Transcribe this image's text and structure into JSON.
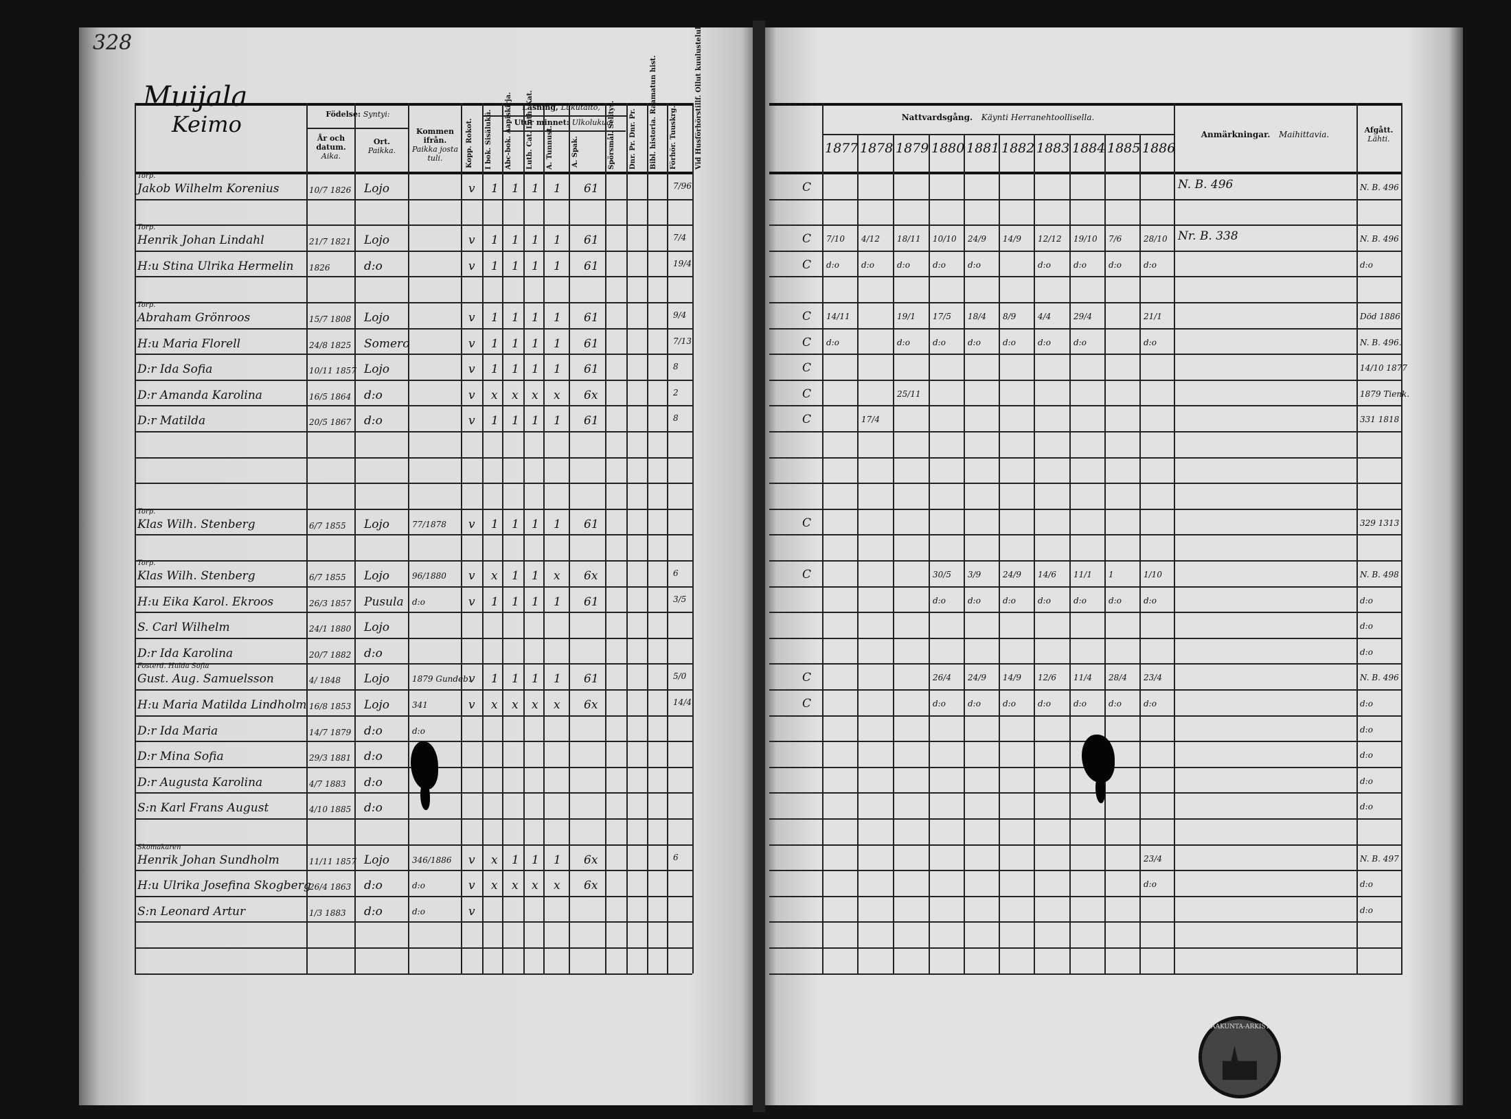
{
  "page_number": "328",
  "village": "Muijala",
  "left_header": {
    "name": "Keimo",
    "birth": "Födelse:",
    "birth_fi": "Syntyi:",
    "year_date": "År och datum.",
    "year_date_fi": "Aika.",
    "place": "Ort.",
    "place_fi": "Paikka.",
    "came_from": "Kommen ifrån.",
    "came_from_fi": "Paikka josta tuli.",
    "vaccinated": "Kopp. Rokot.",
    "reading": "Läsning,",
    "reading_fi": "Lukutaito,",
    "by_heart": "Utur minnet:",
    "by_heart_fi": "Ulkolukua:",
    "vertical": [
      "I bok. Sisälukü.",
      "Abc-bok. Aapiskirja.",
      "Luth. Cat. Luth. Kat.",
      "A. Tunnust.",
      "A. Spak.",
      "Spörsmål. Selitys.",
      "Dnr. Pr. Dnr. Pr.",
      "Bibl. historia. Raamatun hist.",
      "Förhör. Tuuskrg.",
      "Vid Husförhörstillf. Ollut kuulustelulla."
    ]
  },
  "right_header": {
    "communion": "Nattvardsgång.",
    "communion_fi": "Käynti Herranehtoollisella.",
    "years": [
      "1877",
      "1878",
      "1879",
      "1880",
      "1881",
      "1882",
      "1883",
      "1884",
      "1885",
      "1886"
    ],
    "remarks": "Anmärkningar.",
    "remarks_fi": "Maihittavia.",
    "departed": "Afgått.",
    "departed_fi": "Lähti."
  },
  "rows": [
    {
      "row": 0,
      "prefix": "Torp.",
      "name": "Jakob Wilhelm Korenius",
      "date": "10/7 1826",
      "place": "Lojo",
      "from": "",
      "marks": [
        "v",
        "1",
        "1",
        "1",
        "1"
      ],
      "score": "61",
      "hf": "7/96",
      "c": "C",
      "dates": [
        "",
        "",
        "",
        "",
        "",
        "",
        "",
        "",
        "",
        ""
      ],
      "remark": "N. B. 496",
      "departed": "N. B. 496"
    },
    {
      "row": 2,
      "prefix": "Torp.",
      "name": "Henrik Johan Lindahl",
      "date": "21/7 1821",
      "place": "Lojo",
      "from": "",
      "marks": [
        "v",
        "1",
        "1",
        "1",
        "1"
      ],
      "score": "61",
      "hf": "7/4",
      "c": "C",
      "dates": [
        "7/10",
        "4/12",
        "18/11",
        "10/10",
        "24/9",
        "14/9",
        "12/12",
        "19/10",
        "7/6",
        "28/10"
      ],
      "remark": "Nr. B. 338",
      "departed": "N. B. 496"
    },
    {
      "row": 3,
      "prefix": "",
      "name": "H:u Stina Ulrika Hermelin",
      "date": "1826",
      "place": "d:o",
      "from": "",
      "marks": [
        "v",
        "1",
        "1",
        "1",
        "1"
      ],
      "score": "61",
      "hf": "19/4",
      "c": "C",
      "dates": [
        "d:o",
        "d:o",
        "d:o",
        "d:o",
        "d:o",
        "",
        "d:o",
        "d:o",
        "d:o",
        "d:o"
      ],
      "remark": "",
      "departed": "d:o"
    },
    {
      "row": 5,
      "prefix": "Torp.",
      "name": "Abraham Grönroos",
      "date": "15/7 1808",
      "place": "Lojo",
      "from": "",
      "marks": [
        "v",
        "1",
        "1",
        "1",
        "1"
      ],
      "score": "61",
      "hf": "9/4",
      "c": "C",
      "dates": [
        "14/11",
        "",
        "19/1",
        "17/5",
        "18/4",
        "8/9",
        "4/4",
        "29/4",
        "",
        "21/1"
      ],
      "remark": "",
      "departed": "Död 1886"
    },
    {
      "row": 6,
      "prefix": "",
      "name": "H:u Maria Florell",
      "date": "24/8 1825",
      "place": "Somero",
      "from": "",
      "marks": [
        "v",
        "1",
        "1",
        "1",
        "1"
      ],
      "score": "61",
      "hf": "7/13",
      "c": "C",
      "dates": [
        "d:o",
        "",
        "d:o",
        "d:o",
        "d:o",
        "d:o",
        "d:o",
        "d:o",
        "",
        "d:o"
      ],
      "remark": "",
      "departed": "N. B. 496."
    },
    {
      "row": 7,
      "prefix": "",
      "name": "D:r Ida Sofia",
      "date": "10/11 1857",
      "place": "Lojo",
      "from": "",
      "marks": [
        "v",
        "1",
        "1",
        "1",
        "1"
      ],
      "score": "61",
      "hf": "8",
      "c": "C",
      "dates": [
        "",
        "",
        "",
        "",
        "",
        "",
        "",
        "",
        "",
        ""
      ],
      "remark": "",
      "departed": "14/10 1877"
    },
    {
      "row": 8,
      "prefix": "",
      "name": "D:r Amanda Karolina",
      "date": "16/5 1864",
      "place": "d:o",
      "from": "",
      "marks": [
        "v",
        "x",
        "x",
        "x",
        "x"
      ],
      "score": "6x",
      "hf": "2",
      "c": "C",
      "dates": [
        "",
        "",
        "25/11",
        "",
        "",
        "",
        "",
        "",
        "",
        ""
      ],
      "remark": "",
      "departed": "1879 Tienk."
    },
    {
      "row": 9,
      "prefix": "",
      "name": "D:r Matilda",
      "date": "20/5 1867",
      "place": "d:o",
      "from": "",
      "marks": [
        "v",
        "1",
        "1",
        "1",
        "1"
      ],
      "score": "61",
      "hf": "8",
      "c": "C",
      "dates": [
        "",
        "17/4",
        "",
        "",
        "",
        "",
        "",
        "",
        "",
        ""
      ],
      "remark": "",
      "departed": "331 1818"
    },
    {
      "row": 13,
      "prefix": "Torp.",
      "name": "Klas Wilh. Stenberg",
      "date": "6/7 1855",
      "place": "Lojo",
      "from": "77/1878",
      "marks": [
        "v",
        "1",
        "1",
        "1",
        "1"
      ],
      "score": "61",
      "hf": "",
      "c": "C",
      "dates": [
        "",
        "",
        "",
        "",
        "",
        "",
        "",
        "",
        "",
        ""
      ],
      "remark": "",
      "departed": "329 1313"
    },
    {
      "row": 15,
      "prefix": "Torp.",
      "name": "Klas Wilh. Stenberg",
      "date": "6/7 1855",
      "place": "Lojo",
      "from": "96/1880",
      "marks": [
        "v",
        "x",
        "1",
        "1",
        "x"
      ],
      "score": "6x",
      "hf": "6",
      "c": "C",
      "dates": [
        "",
        "",
        "",
        "30/5",
        "3/9",
        "24/9",
        "14/6",
        "11/1",
        "1",
        "1/10"
      ],
      "remark": "",
      "departed": "N. B. 498"
    },
    {
      "row": 16,
      "prefix": "",
      "name": "H:u Eika Karol. Ekroos",
      "date": "26/3 1857",
      "place": "Pusula",
      "from": "d:o",
      "marks": [
        "v",
        "1",
        "1",
        "1",
        "1"
      ],
      "score": "61",
      "hf": "3/5",
      "c": "",
      "dates": [
        "",
        "",
        "",
        "d:o",
        "d:o",
        "d:o",
        "d:o",
        "d:o",
        "d:o",
        "d:o"
      ],
      "remark": "",
      "departed": "d:o"
    },
    {
      "row": 17,
      "prefix": "",
      "name": "S. Carl Wilhelm",
      "date": "24/1 1880",
      "place": "Lojo",
      "from": "",
      "marks": [
        "",
        "",
        "",
        "",
        ""
      ],
      "score": "",
      "hf": "",
      "c": "",
      "dates": [
        "",
        "",
        "",
        "",
        "",
        "",
        "",
        "",
        "",
        ""
      ],
      "remark": "",
      "departed": "d:o"
    },
    {
      "row": 18,
      "prefix": "",
      "name": "D:r Ida Karolina",
      "date": "20/7 1882",
      "place": "d:o",
      "from": "",
      "marks": [
        "",
        "",
        "",
        "",
        ""
      ],
      "score": "",
      "hf": "",
      "c": "",
      "dates": [
        "",
        "",
        "",
        "",
        "",
        "",
        "",
        "",
        "",
        ""
      ],
      "remark": "",
      "departed": "d:o"
    },
    {
      "row": 19,
      "prefix": "Fosterd. Hulda Sofia",
      "name": "Gust. Aug. Samuelsson",
      "date": "4/ 1848",
      "place": "Lojo",
      "from": "1879 Gundeb.",
      "marks": [
        "v",
        "1",
        "1",
        "1",
        "1"
      ],
      "score": "61",
      "hf": "5/0",
      "c": "C",
      "dates": [
        "",
        "",
        "",
        "26/4",
        "24/9",
        "14/9",
        "12/6",
        "11/4",
        "28/4",
        "23/4"
      ],
      "remark": "",
      "departed": "N. B. 496"
    },
    {
      "row": 20,
      "prefix": "",
      "name": "H:u Maria Matilda Lindholm",
      "date": "16/8 1853",
      "place": "Lojo",
      "from": "341",
      "marks": [
        "v",
        "x",
        "x",
        "x",
        "x"
      ],
      "score": "6x",
      "hf": "14/4",
      "c": "C",
      "dates": [
        "",
        "",
        "",
        "d:o",
        "d:o",
        "d:o",
        "d:o",
        "d:o",
        "d:o",
        "d:o"
      ],
      "remark": "",
      "departed": "d:o"
    },
    {
      "row": 21,
      "prefix": "",
      "name": "D:r Ida Maria",
      "date": "14/7 1879",
      "place": "d:o",
      "from": "d:o",
      "marks": [
        "",
        "",
        "",
        "",
        ""
      ],
      "score": "",
      "hf": "",
      "c": "",
      "dates": [
        "",
        "",
        "",
        "",
        "",
        "",
        "",
        "",
        "",
        ""
      ],
      "remark": "",
      "departed": "d:o"
    },
    {
      "row": 22,
      "prefix": "",
      "name": "D:r Mina Sofia",
      "date": "29/3 1881",
      "place": "d:o",
      "from": "",
      "marks": [
        "",
        "",
        "",
        "",
        ""
      ],
      "score": "",
      "hf": "",
      "c": "",
      "dates": [
        "",
        "",
        "",
        "",
        "",
        "",
        "",
        "",
        "",
        ""
      ],
      "remark": "",
      "departed": "d:o"
    },
    {
      "row": 23,
      "prefix": "",
      "name": "D:r Augusta Karolina",
      "date": "4/7 1883",
      "place": "d:o",
      "from": "",
      "marks": [
        "",
        "",
        "",
        "",
        ""
      ],
      "score": "",
      "hf": "",
      "c": "",
      "dates": [
        "",
        "",
        "",
        "",
        "",
        "",
        "",
        "",
        "",
        ""
      ],
      "remark": "",
      "departed": "d:o"
    },
    {
      "row": 24,
      "prefix": "",
      "name": "S:n Karl Frans August",
      "date": "4/10 1885",
      "place": "d:o",
      "from": "",
      "marks": [
        "",
        "",
        "",
        "",
        ""
      ],
      "score": "",
      "hf": "",
      "c": "",
      "dates": [
        "",
        "",
        "",
        "",
        "",
        "",
        "",
        "",
        "",
        ""
      ],
      "remark": "",
      "departed": "d:o"
    },
    {
      "row": 26,
      "prefix": "Skomakaren",
      "name": "Henrik Johan Sundholm",
      "date": "11/11 1857",
      "place": "Lojo",
      "from": "346/1886",
      "marks": [
        "v",
        "x",
        "1",
        "1",
        "1"
      ],
      "score": "6x",
      "hf": "6",
      "c": "",
      "dates": [
        "",
        "",
        "",
        "",
        "",
        "",
        "",
        "",
        "",
        "23/4"
      ],
      "remark": "",
      "departed": "N. B. 497"
    },
    {
      "row": 27,
      "prefix": "",
      "name": "H:u Ulrika Josefina Skogberg",
      "date": "26/4 1863",
      "place": "d:o",
      "from": "d:o",
      "marks": [
        "v",
        "x",
        "x",
        "x",
        "x"
      ],
      "score": "6x",
      "hf": "",
      "c": "",
      "dates": [
        "",
        "",
        "",
        "",
        "",
        "",
        "",
        "",
        "",
        "d:o"
      ],
      "remark": "",
      "departed": "d:o"
    },
    {
      "row": 28,
      "prefix": "",
      "name": "S:n Leonard Artur",
      "date": "1/3 1883",
      "place": "d:o",
      "from": "d:o",
      "marks": [
        "v",
        "",
        "",
        "",
        ""
      ],
      "score": "",
      "hf": "",
      "c": "",
      "dates": [
        "",
        "",
        "",
        "",
        "",
        "",
        "",
        "",
        "",
        ""
      ],
      "remark": "",
      "departed": "d:o"
    }
  ],
  "stamp_text": "MAAKUNTA-ARKISTO"
}
